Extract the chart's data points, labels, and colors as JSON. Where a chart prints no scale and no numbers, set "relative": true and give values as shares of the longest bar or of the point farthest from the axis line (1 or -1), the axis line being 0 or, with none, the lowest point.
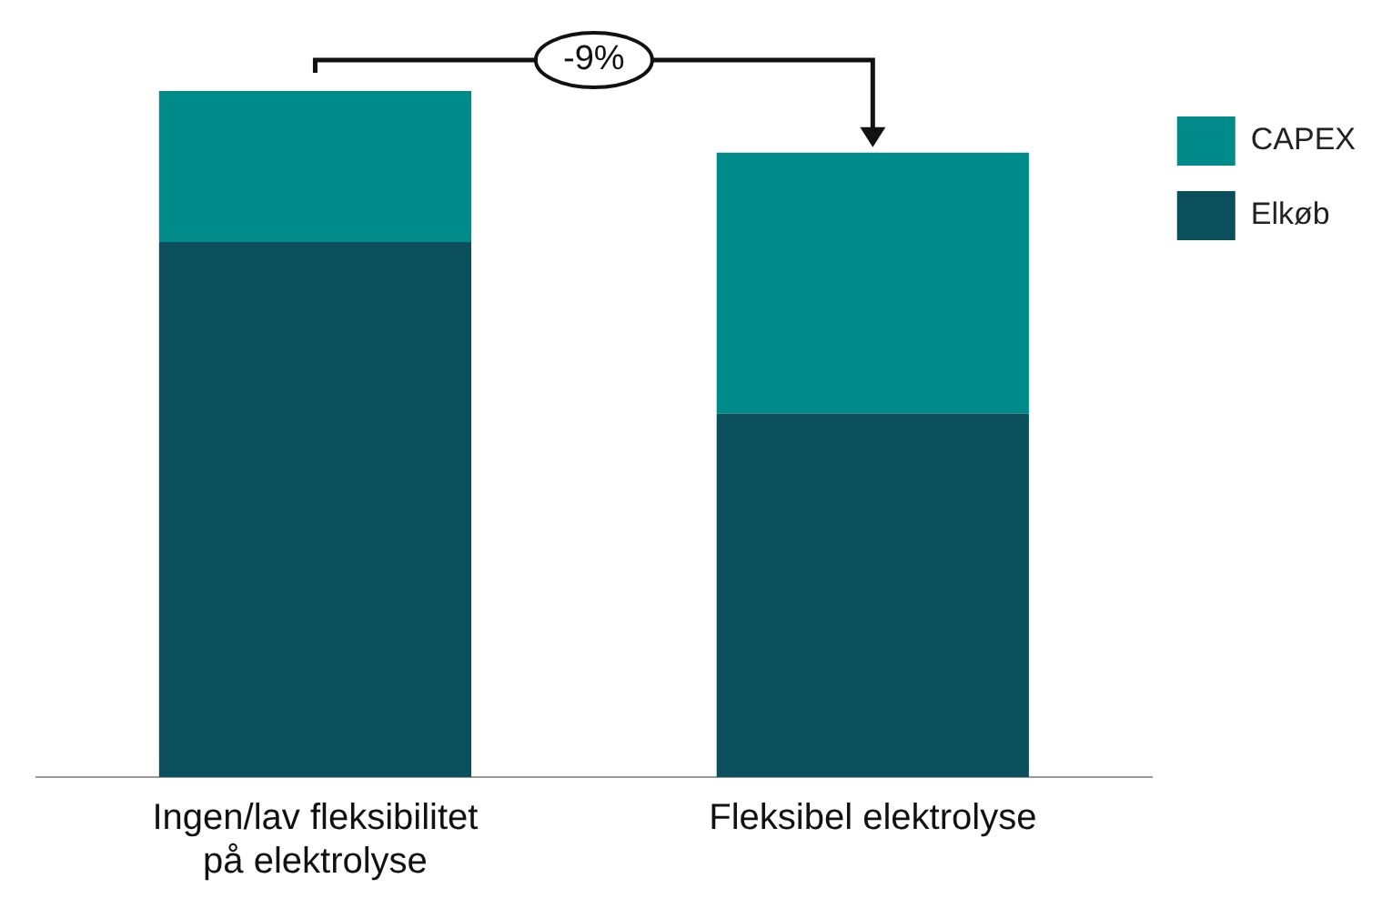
{
  "chart_data": {
    "type": "bar",
    "stacked": true,
    "relative": true,
    "categories": [
      "Ingen/lav fleksibilitet på elektrolyse",
      "Fleksibel elektrolyse"
    ],
    "series": [
      {
        "name": "Elkøb",
        "color": "#0b4f5c",
        "values": [
          0.78,
          0.53
        ]
      },
      {
        "name": "CAPEX",
        "color": "#008b8b",
        "values": [
          0.22,
          0.38
        ]
      }
    ],
    "legend": "top right",
    "grid": false,
    "annotations": [
      "-9%"
    ]
  }
}
